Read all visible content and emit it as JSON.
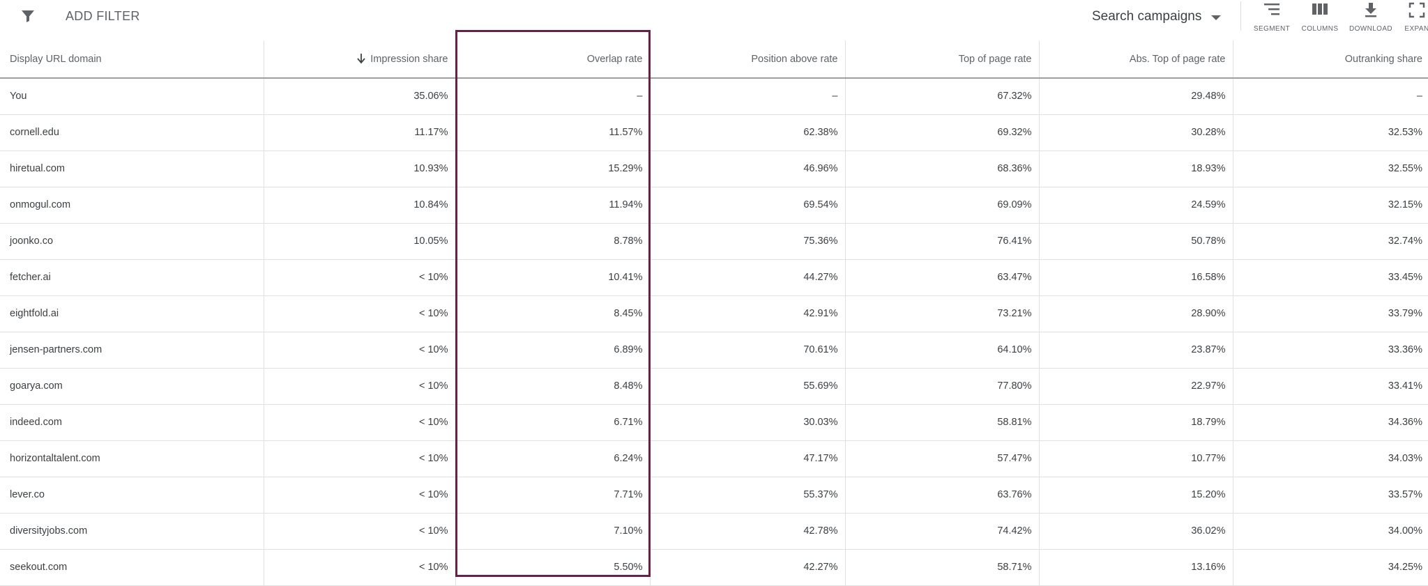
{
  "toolbar": {
    "add_filter_label": "ADD FILTER",
    "campaign_select": "Search campaigns",
    "tools": [
      {
        "label": "SEGMENT",
        "icon": "segment-icon"
      },
      {
        "label": "COLUMNS",
        "icon": "columns-icon"
      },
      {
        "label": "DOWNLOAD",
        "icon": "download-icon"
      },
      {
        "label": "EXPAN",
        "icon": "expand-icon"
      }
    ]
  },
  "table": {
    "columns": [
      "Display URL domain",
      "Impression share",
      "Overlap rate",
      "Position above rate",
      "Top of page rate",
      "Abs. Top of page rate",
      "Outranking share"
    ],
    "sorted_column": "Impression share",
    "sort_direction": "descending",
    "highlight_column": "Overlap rate",
    "highlight_color": "#6b1f47",
    "rows": [
      [
        "You",
        "35.06%",
        "–",
        "–",
        "67.32%",
        "29.48%",
        "–"
      ],
      [
        "cornell.edu",
        "11.17%",
        "11.57%",
        "62.38%",
        "69.32%",
        "30.28%",
        "32.53%"
      ],
      [
        "hiretual.com",
        "10.93%",
        "15.29%",
        "46.96%",
        "68.36%",
        "18.93%",
        "32.55%"
      ],
      [
        "onmogul.com",
        "10.84%",
        "11.94%",
        "69.54%",
        "69.09%",
        "24.59%",
        "32.15%"
      ],
      [
        "joonko.co",
        "10.05%",
        "8.78%",
        "75.36%",
        "76.41%",
        "50.78%",
        "32.74%"
      ],
      [
        "fetcher.ai",
        "< 10%",
        "10.41%",
        "44.27%",
        "63.47%",
        "16.58%",
        "33.45%"
      ],
      [
        "eightfold.ai",
        "< 10%",
        "8.45%",
        "42.91%",
        "73.21%",
        "28.90%",
        "33.79%"
      ],
      [
        "jensen-partners.com",
        "< 10%",
        "6.89%",
        "70.61%",
        "64.10%",
        "23.87%",
        "33.36%"
      ],
      [
        "goarya.com",
        "< 10%",
        "8.48%",
        "55.69%",
        "77.80%",
        "22.97%",
        "33.41%"
      ],
      [
        "indeed.com",
        "< 10%",
        "6.71%",
        "30.03%",
        "58.81%",
        "18.79%",
        "34.36%"
      ],
      [
        "horizontaltalent.com",
        "< 10%",
        "6.24%",
        "47.17%",
        "57.47%",
        "10.77%",
        "34.03%"
      ],
      [
        "lever.co",
        "< 10%",
        "7.71%",
        "55.37%",
        "63.76%",
        "15.20%",
        "33.57%"
      ],
      [
        "diversityjobs.com",
        "< 10%",
        "7.10%",
        "42.78%",
        "74.42%",
        "36.02%",
        "34.00%"
      ],
      [
        "seekout.com",
        "< 10%",
        "5.50%",
        "42.27%",
        "58.71%",
        "13.16%",
        "34.25%"
      ]
    ]
  }
}
